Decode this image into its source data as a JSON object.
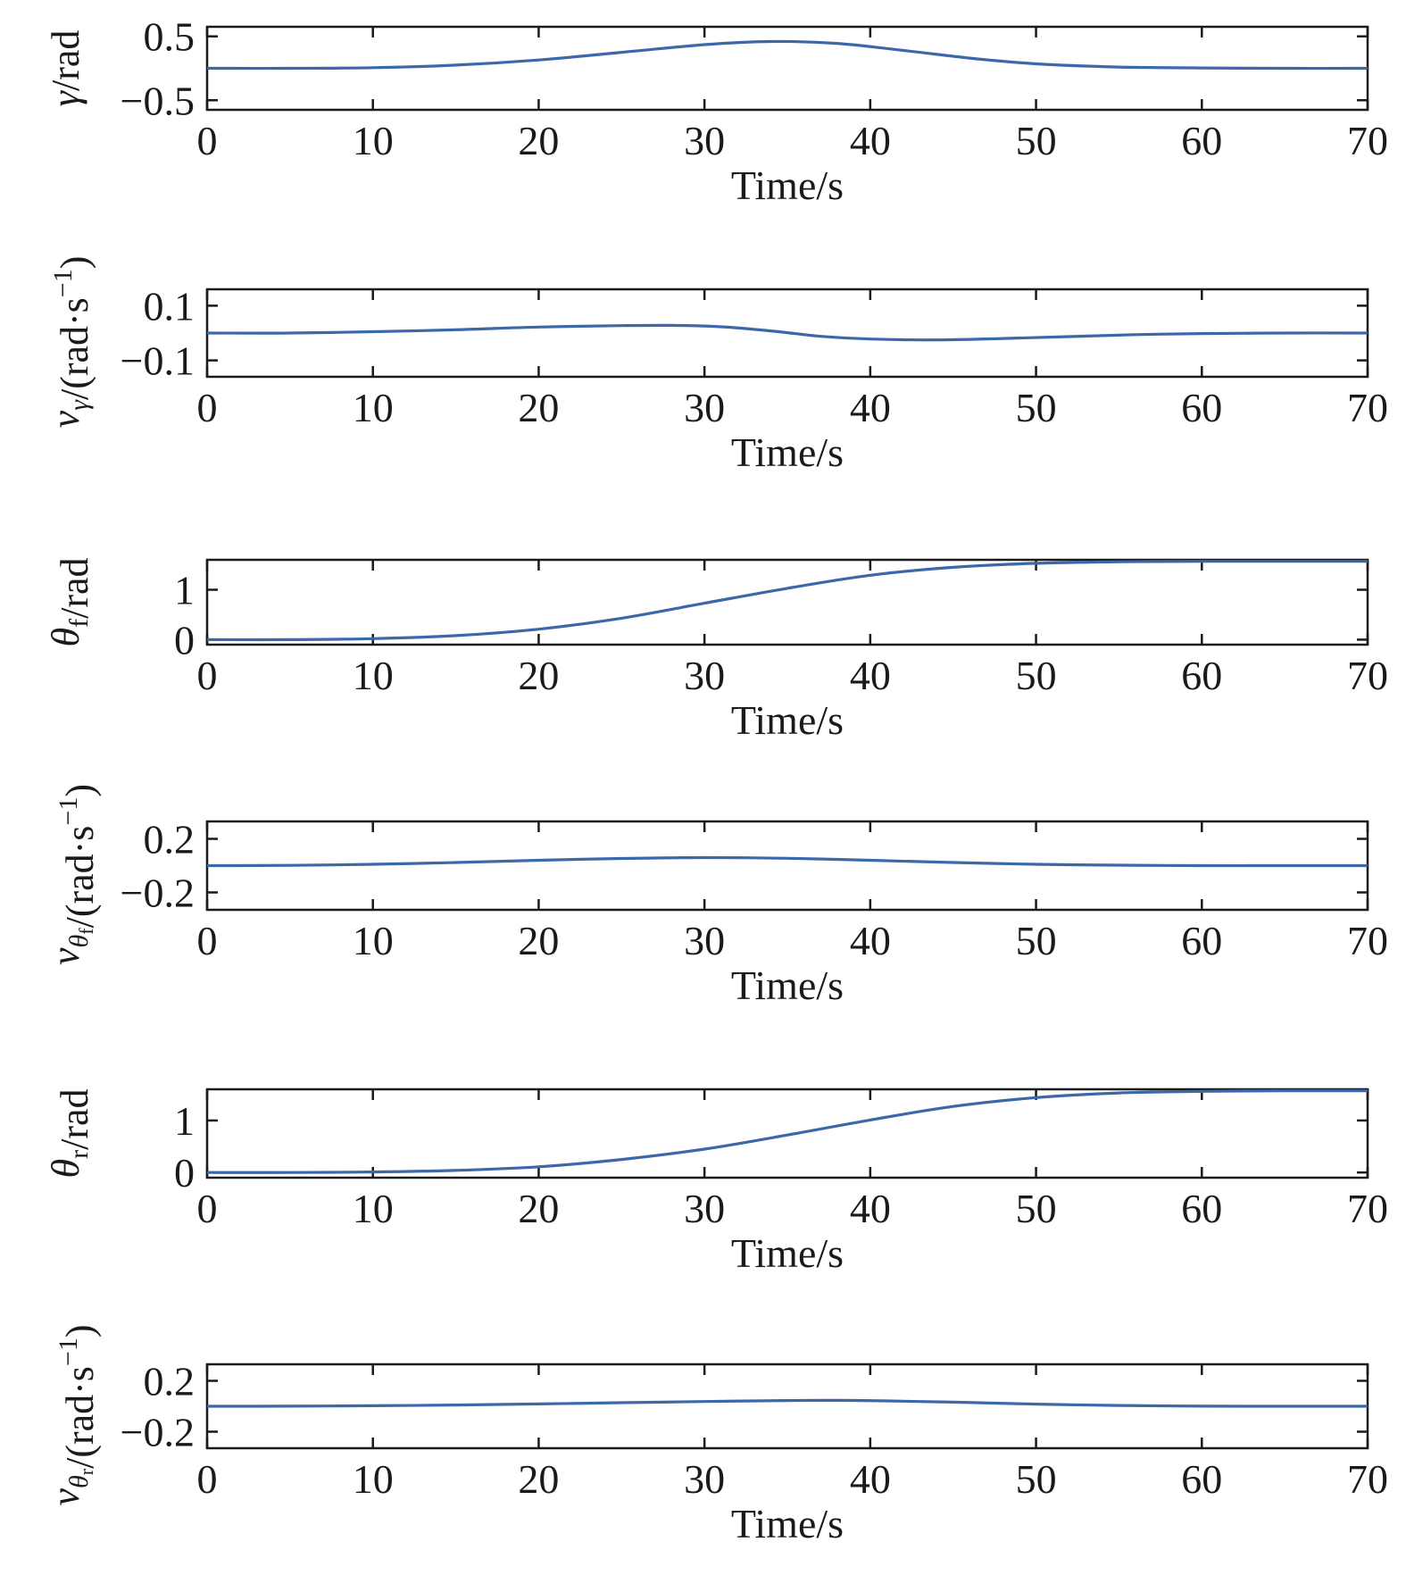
{
  "chart_data": [
    {
      "type": "line",
      "ylabel": "γ/rad",
      "xlabel": "Time/s",
      "xlim": [
        0,
        70
      ],
      "ylim": [
        -0.65,
        0.65
      ],
      "xticks": [
        "0",
        "10",
        "20",
        "30",
        "40",
        "50",
        "60",
        "70"
      ],
      "yticks": [
        {
          "value": 0.5,
          "label": "0.5"
        },
        {
          "value": -0.5,
          "label": "−0.5"
        }
      ],
      "series": [
        {
          "x": [
            0,
            5,
            10,
            15,
            20,
            25,
            30,
            34,
            38,
            42,
            46,
            50,
            55,
            60,
            65,
            70
          ],
          "y": [
            0,
            0,
            0.01,
            0.05,
            0.13,
            0.25,
            0.37,
            0.42,
            0.39,
            0.28,
            0.16,
            0.07,
            0.02,
            0.005,
            0,
            0
          ]
        }
      ]
    },
    {
      "type": "line",
      "ylabel": "v_γ/(rad·s⁻¹)",
      "xlabel": "Time/s",
      "xlim": [
        0,
        70
      ],
      "ylim": [
        -0.16,
        0.16
      ],
      "xticks": [
        "0",
        "10",
        "20",
        "30",
        "40",
        "50",
        "60",
        "70"
      ],
      "yticks": [
        {
          "value": 0.1,
          "label": "0.1"
        },
        {
          "value": -0.1,
          "label": "−0.1"
        }
      ],
      "series": [
        {
          "x": [
            0,
            5,
            10,
            15,
            20,
            25,
            28,
            31,
            34,
            37,
            40,
            44,
            48,
            52,
            56,
            60,
            65,
            70
          ],
          "y": [
            0,
            0,
            0.005,
            0.012,
            0.022,
            0.027,
            0.028,
            0.023,
            0.008,
            -0.012,
            -0.022,
            -0.025,
            -0.02,
            -0.013,
            -0.006,
            -0.002,
            0,
            0
          ]
        }
      ]
    },
    {
      "type": "line",
      "ylabel": "θ_f/rad",
      "xlabel": "Time/s",
      "xlim": [
        0,
        70
      ],
      "ylim": [
        -0.1,
        1.6
      ],
      "xticks": [
        "0",
        "10",
        "20",
        "30",
        "40",
        "50",
        "60",
        "70"
      ],
      "yticks": [
        {
          "value": 1,
          "label": "1"
        },
        {
          "value": 0,
          "label": "0"
        }
      ],
      "series": [
        {
          "x": [
            0,
            5,
            10,
            15,
            20,
            25,
            30,
            35,
            40,
            45,
            50,
            55,
            60,
            65,
            70
          ],
          "y": [
            0,
            0,
            0.02,
            0.08,
            0.21,
            0.43,
            0.73,
            1.03,
            1.29,
            1.45,
            1.53,
            1.56,
            1.57,
            1.57,
            1.57
          ]
        }
      ]
    },
    {
      "type": "line",
      "ylabel": "v_θf/(rad·s⁻¹)",
      "xlabel": "Time/s",
      "xlim": [
        0,
        70
      ],
      "ylim": [
        -0.33,
        0.33
      ],
      "xticks": [
        "0",
        "10",
        "20",
        "30",
        "40",
        "50",
        "60",
        "70"
      ],
      "yticks": [
        {
          "value": 0.2,
          "label": "0.2"
        },
        {
          "value": -0.2,
          "label": "−0.2"
        }
      ],
      "series": [
        {
          "x": [
            0,
            5,
            10,
            15,
            20,
            25,
            30,
            35,
            40,
            45,
            50,
            55,
            60,
            65,
            70
          ],
          "y": [
            0,
            0.002,
            0.01,
            0.023,
            0.04,
            0.053,
            0.06,
            0.055,
            0.04,
            0.023,
            0.01,
            0.003,
            0,
            0,
            0
          ]
        }
      ]
    },
    {
      "type": "line",
      "ylabel": "θ_r/rad",
      "xlabel": "Time/s",
      "xlim": [
        0,
        70
      ],
      "ylim": [
        -0.1,
        1.6
      ],
      "xticks": [
        "0",
        "10",
        "20",
        "30",
        "40",
        "50",
        "60",
        "70"
      ],
      "yticks": [
        {
          "value": 1,
          "label": "1"
        },
        {
          "value": 0,
          "label": "0"
        }
      ],
      "series": [
        {
          "x": [
            0,
            5,
            10,
            15,
            20,
            25,
            30,
            35,
            40,
            45,
            50,
            55,
            60,
            65,
            70
          ],
          "y": [
            0,
            0,
            0.01,
            0.04,
            0.11,
            0.25,
            0.45,
            0.72,
            1.01,
            1.27,
            1.44,
            1.53,
            1.56,
            1.57,
            1.57
          ]
        }
      ]
    },
    {
      "type": "line",
      "ylabel": "v_θr/(rad·s⁻¹)",
      "xlabel": "Time/s",
      "xlim": [
        0,
        70
      ],
      "ylim": [
        -0.33,
        0.33
      ],
      "xticks": [
        "0",
        "10",
        "20",
        "30",
        "40",
        "50",
        "60",
        "70"
      ],
      "yticks": [
        {
          "value": 0.2,
          "label": "0.2"
        },
        {
          "value": -0.2,
          "label": "−0.2"
        }
      ],
      "series": [
        {
          "x": [
            0,
            5,
            10,
            15,
            20,
            25,
            30,
            35,
            38,
            41,
            45,
            50,
            55,
            60,
            65,
            70
          ],
          "y": [
            0,
            0.001,
            0.004,
            0.01,
            0.018,
            0.028,
            0.037,
            0.045,
            0.046,
            0.042,
            0.032,
            0.017,
            0.006,
            0.001,
            0,
            0
          ]
        }
      ]
    }
  ],
  "style": {
    "line_color": "#3c67a8",
    "axis_color": "#1a1a1a",
    "grid": false,
    "legend": "none"
  }
}
